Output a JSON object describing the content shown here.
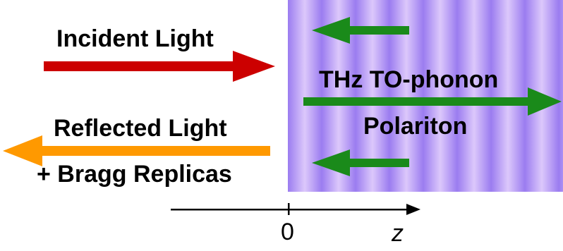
{
  "labels": {
    "incident": "Incident Light",
    "reflected": "Reflected Light",
    "bragg": "+ Bragg Replicas",
    "polariton_line1": "THz TO-phonon",
    "polariton_line2": "Polariton"
  },
  "axis": {
    "origin_label": "0",
    "variable_label": "z"
  },
  "colors": {
    "incident_arrow": "#cc0000",
    "reflected_arrow": "#ff9900",
    "polariton_arrows": "#1a8a1a",
    "medium_stripe_dark": "#9b7cf0",
    "medium_stripe_light": "#dcc8fb",
    "axis": "#000000"
  }
}
